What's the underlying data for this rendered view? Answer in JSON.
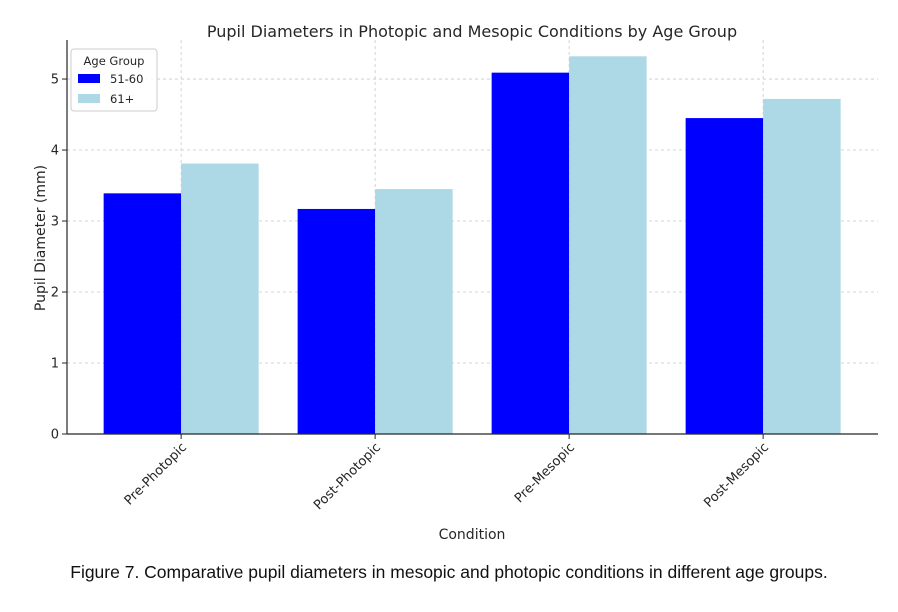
{
  "chart_data": {
    "type": "bar",
    "title": "Pupil Diameters in Photopic and Mesopic Conditions by Age Group",
    "xlabel": "Condition",
    "ylabel": "Pupil Diameter (mm)",
    "categories": [
      "Pre-Photopic",
      "Post-Photopic",
      "Pre-Mesopic",
      "Post-Mesopic"
    ],
    "series": [
      {
        "name": "51-60",
        "color": "#0000ff",
        "values": [
          3.39,
          3.17,
          5.09,
          4.45
        ]
      },
      {
        "name": "61+",
        "color": "#add8e6",
        "values": [
          3.81,
          3.45,
          5.32,
          4.72
        ]
      }
    ],
    "ylim": [
      0,
      5.55
    ],
    "yticks": [
      "0",
      "1",
      "2",
      "3",
      "4",
      "5"
    ],
    "grid": true,
    "legend": {
      "title": "Age Group",
      "position": "top-left"
    }
  },
  "caption": "Figure 7. Comparative pupil diameters in mesopic and photopic conditions in different age groups."
}
